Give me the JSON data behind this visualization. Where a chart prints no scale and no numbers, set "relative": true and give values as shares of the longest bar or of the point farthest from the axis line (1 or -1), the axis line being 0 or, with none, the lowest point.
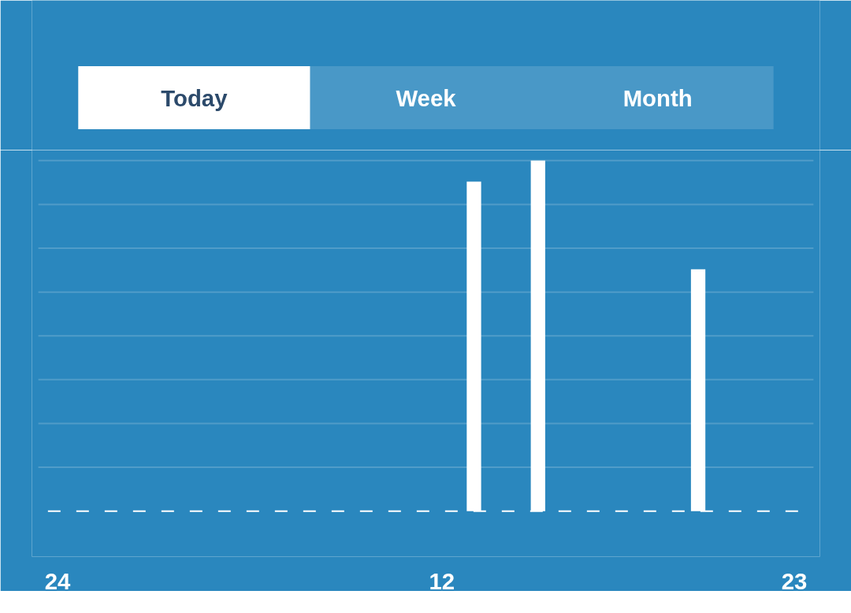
{
  "chart_data": {
    "type": "bar",
    "annotations": [
      "Today",
      "Week",
      "Month"
    ],
    "categories": [
      "24",
      null,
      null,
      null,
      null,
      null,
      null,
      null,
      null,
      null,
      null,
      null,
      "12",
      null,
      null,
      null,
      null,
      null,
      null,
      null,
      null,
      null,
      null,
      "23"
    ],
    "values": [
      null,
      null,
      null,
      null,
      null,
      null,
      null,
      null,
      null,
      null,
      null,
      null,
      null,
      0.94,
      null,
      1,
      null,
      null,
      null,
      null,
      0.69,
      null,
      null,
      null
    ],
    "color": "#ffffff",
    "relative": true,
    "grid": true
  }
}
